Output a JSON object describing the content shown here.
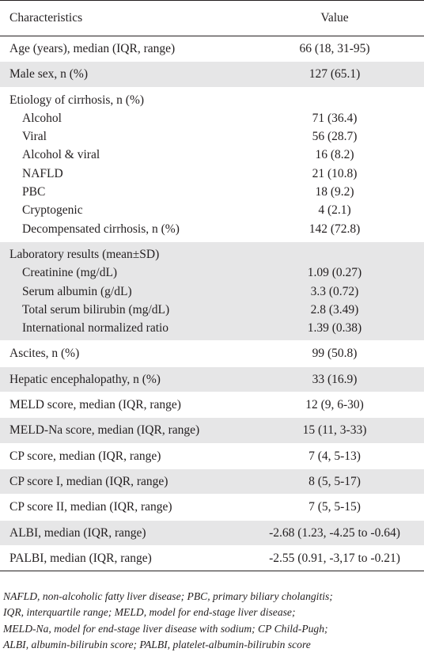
{
  "header": {
    "characteristics": "Characteristics",
    "value": "Value"
  },
  "rows": [
    {
      "shade": false,
      "lines": [
        {
          "label": "Age (years), median (IQR, range)",
          "value": "66 (18, 31-95)",
          "indent": false
        }
      ]
    },
    {
      "shade": true,
      "lines": [
        {
          "label": "Male sex, n (%)",
          "value": "127 (65.1)",
          "indent": false
        }
      ]
    },
    {
      "shade": false,
      "lines": [
        {
          "label": "Etiology of cirrhosis, n (%)",
          "value": "",
          "indent": false
        },
        {
          "label": "Alcohol",
          "value": "71 (36.4)",
          "indent": true
        },
        {
          "label": "Viral",
          "value": "56 (28.7)",
          "indent": true
        },
        {
          "label": "Alcohol & viral",
          "value": "16 (8.2)",
          "indent": true
        },
        {
          "label": "NAFLD",
          "value": "21 (10.8)",
          "indent": true
        },
        {
          "label": "PBC",
          "value": "18 (9.2)",
          "indent": true
        },
        {
          "label": "Cryptogenic",
          "value": "4 (2.1)",
          "indent": true
        },
        {
          "label": "Decompensated cirrhosis, n (%)",
          "value": "142 (72.8)",
          "indent": true
        }
      ]
    },
    {
      "shade": true,
      "lines": [
        {
          "label": "Laboratory results (mean±SD)",
          "value": "",
          "indent": false
        },
        {
          "label": "Creatinine (mg/dL)",
          "value": "1.09 (0.27)",
          "indent": true
        },
        {
          "label": "Serum albumin (g/dL)",
          "value": "3.3 (0.72)",
          "indent": true
        },
        {
          "label": "Total serum bilirubin (mg/dL)",
          "value": "2.8 (3.49)",
          "indent": true
        },
        {
          "label": "International normalized ratio",
          "value": "1.39 (0.38)",
          "indent": true
        }
      ]
    },
    {
      "shade": false,
      "lines": [
        {
          "label": "Ascites, n (%)",
          "value": "99 (50.8)",
          "indent": false
        }
      ]
    },
    {
      "shade": true,
      "lines": [
        {
          "label": "Hepatic encephalopathy, n (%)",
          "value": "33 (16.9)",
          "indent": false
        }
      ]
    },
    {
      "shade": false,
      "lines": [
        {
          "label": "MELD score, median (IQR, range)",
          "value": "12 (9, 6-30)",
          "indent": false
        }
      ]
    },
    {
      "shade": true,
      "lines": [
        {
          "label": "MELD-Na score, median (IQR, range)",
          "value": "15 (11, 3-33)",
          "indent": false
        }
      ]
    },
    {
      "shade": false,
      "lines": [
        {
          "label": "CP score, median (IQR, range)",
          "value": "7 (4, 5-13)",
          "indent": false
        }
      ]
    },
    {
      "shade": true,
      "lines": [
        {
          "label": "CP score I, median (IQR, range)",
          "value": "8 (5, 5-17)",
          "indent": false
        }
      ]
    },
    {
      "shade": false,
      "lines": [
        {
          "label": "CP score II, median (IQR, range)",
          "value": "7 (5, 5-15)",
          "indent": false
        }
      ]
    },
    {
      "shade": true,
      "lines": [
        {
          "label": "ALBI, median (IQR, range)",
          "value": "-2.68 (1.23, -4.25 to -0.64)",
          "indent": false
        }
      ]
    },
    {
      "shade": false,
      "lines": [
        {
          "label": "PALBI, median (IQR, range)",
          "value": "-2.55 (0.91, -3,17 to -0.21)",
          "indent": false
        }
      ]
    }
  ],
  "footnote": [
    "NAFLD, non-alcoholic fatty liver disease; PBC, primary biliary cholangitis;",
    "IQR, interquartile range; MELD, model for end-stage liver disease;",
    "MELD-Na, model for end-stage liver disease with sodium; CP Child-Pugh;",
    "ALBI, albumin-bilirubin score; PALBI, platelet-albumin-bilirubin score"
  ]
}
